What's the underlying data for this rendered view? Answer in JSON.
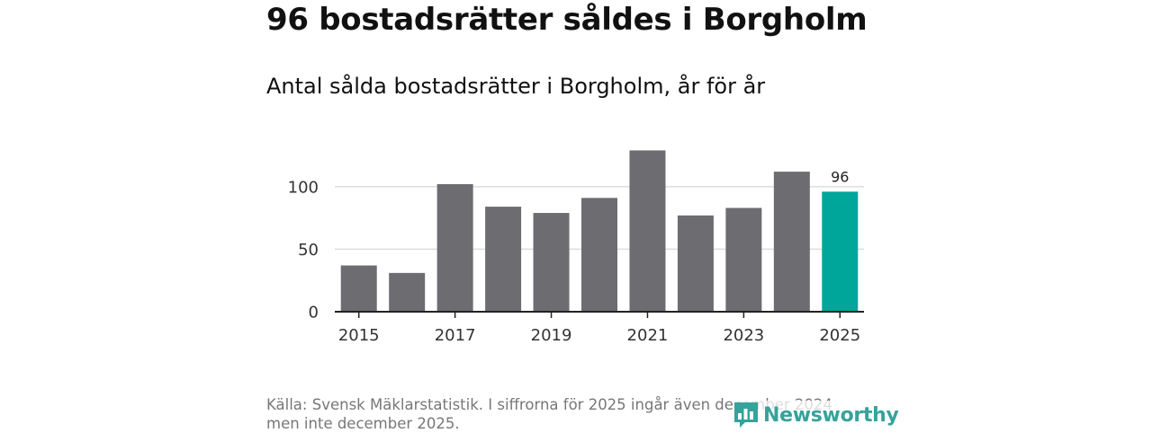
{
  "headline": "96 bostadsrätter såldes i Borgholm",
  "subtitle": "Antal sålda bostadsrätter i Borgholm, år för år",
  "source": "Källa: Svensk Mäklarstatistik. I siffrorna för 2025 ingår även december 2024 men inte december 2025.",
  "logo": {
    "text": "Newsworthy",
    "icon": "bar-chart-icon"
  },
  "colors": {
    "bar": "#6d6c71",
    "highlight": "#00a69a",
    "grid": "#dddddd",
    "axis": "#222222",
    "logo": "#35a39b"
  },
  "chart_data": {
    "type": "bar",
    "title": "Antal sålda bostadsrätter i Borgholm, år för år",
    "categories": [
      "2015",
      "2016",
      "2017",
      "2018",
      "2019",
      "2020",
      "2021",
      "2022",
      "2023",
      "2024",
      "2025"
    ],
    "values": [
      37,
      31,
      102,
      84,
      79,
      91,
      129,
      77,
      83,
      112,
      96
    ],
    "highlight_index": 10,
    "data_labels": [
      {
        "index": 10,
        "text": "96"
      }
    ],
    "x_tick_labels": [
      "2015",
      "2017",
      "2019",
      "2021",
      "2023",
      "2025"
    ],
    "y_ticks": [
      0,
      50,
      100
    ],
    "ylim": [
      0,
      130
    ],
    "xlabel": "",
    "ylabel": "",
    "grid": true
  }
}
